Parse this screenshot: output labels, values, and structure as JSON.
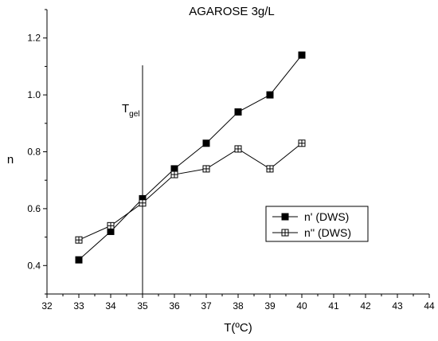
{
  "chart_data": {
    "type": "line",
    "title": "AGAROSE 3g/L",
    "xlabel": "T(ºC)",
    "ylabel": "n",
    "xlim": [
      32,
      44
    ],
    "ylim": [
      0.3,
      1.3
    ],
    "xticks": [
      32,
      33,
      34,
      35,
      36,
      37,
      38,
      39,
      40,
      41,
      42,
      43,
      44
    ],
    "yticks": [
      0.4,
      0.6,
      0.8,
      1.0,
      1.2
    ],
    "ytick_labels": [
      "0.4",
      "0.6",
      "0.8",
      "1.0",
      "1.2"
    ],
    "grid": false,
    "legend_position": "right",
    "series": [
      {
        "name": "n'  (DWS)",
        "marker": "filled-square",
        "color": "#000000",
        "x": [
          33,
          34,
          35,
          36,
          37,
          38,
          39,
          40
        ],
        "y": [
          0.42,
          0.52,
          0.635,
          0.74,
          0.83,
          0.94,
          1.0,
          1.14
        ]
      },
      {
        "name": "n''  (DWS)",
        "marker": "open-crossed-square",
        "color": "#000000",
        "x": [
          33,
          34,
          35,
          36,
          37,
          38,
          39,
          40
        ],
        "y": [
          0.49,
          0.54,
          0.62,
          0.72,
          0.74,
          0.81,
          0.74,
          0.83
        ]
      }
    ],
    "annotations": [
      {
        "type": "vline",
        "x": 35,
        "label_main": "T",
        "label_sub": "gel"
      }
    ]
  }
}
